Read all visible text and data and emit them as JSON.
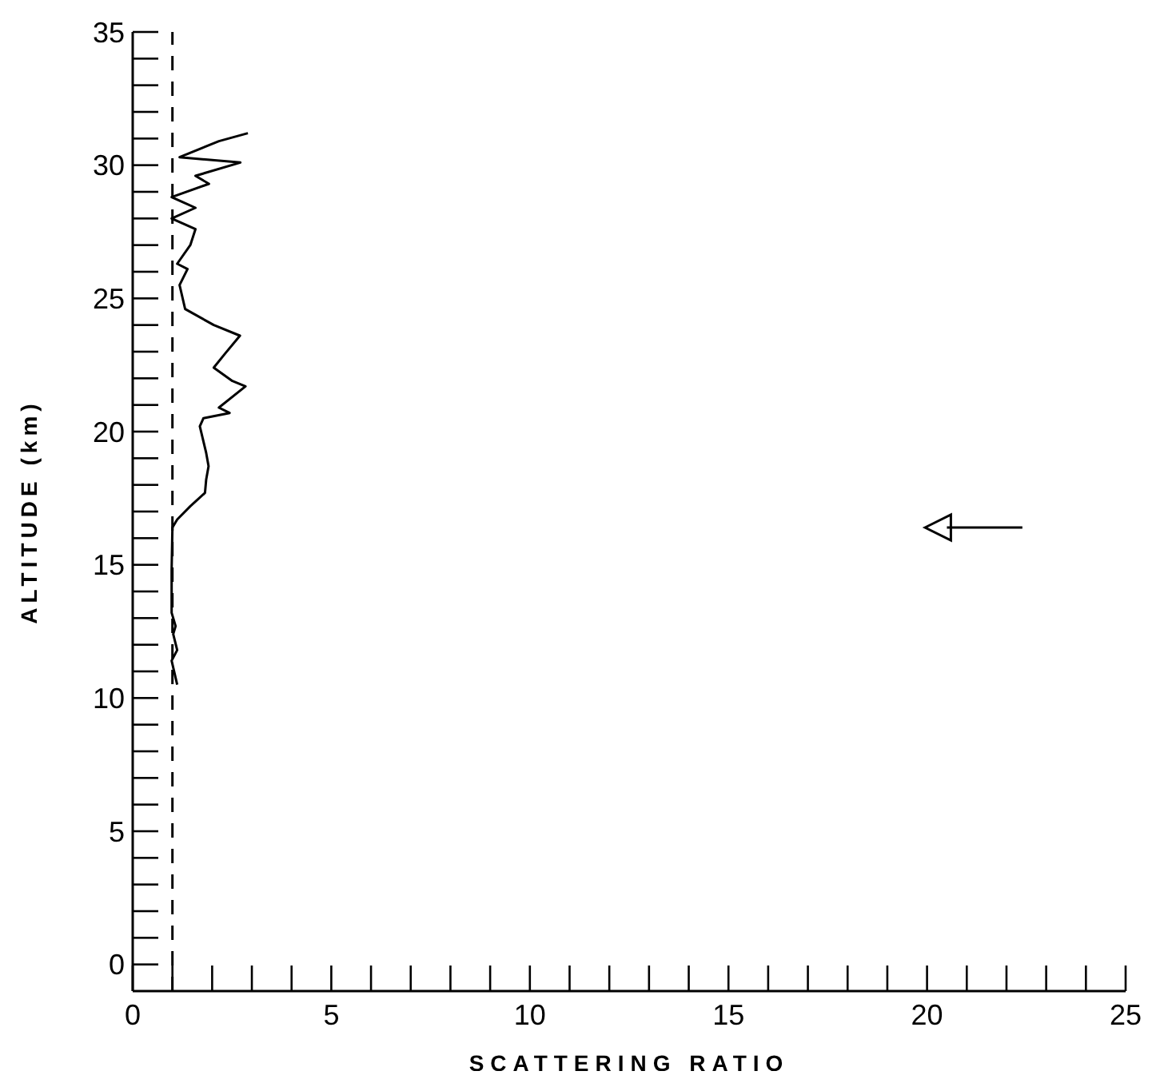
{
  "chart_data": {
    "type": "line",
    "xlabel": "SCATTERING RATIO",
    "ylabel": "ALTITUDE (km)",
    "xlim": [
      0,
      25
    ],
    "xticks": [
      0,
      {
        "value": 1,
        "label": null
      },
      {
        "value": 2,
        "label": null
      },
      {
        "value": 3,
        "label": null
      },
      {
        "value": 4,
        "label": null
      },
      5,
      {
        "value": 6,
        "label": null
      },
      {
        "value": 7,
        "label": null
      },
      {
        "value": 8,
        "label": null
      },
      {
        "value": 9,
        "label": null
      },
      10,
      {
        "value": 11,
        "label": null
      },
      {
        "value": 12,
        "label": null
      },
      {
        "value": 13,
        "label": null
      },
      {
        "value": 14,
        "label": null
      },
      15,
      {
        "value": 16,
        "label": null
      },
      {
        "value": 17,
        "label": null
      },
      {
        "value": 18,
        "label": null
      },
      {
        "value": 19,
        "label": null
      },
      20,
      {
        "value": 21,
        "label": null
      },
      {
        "value": 22,
        "label": null
      },
      {
        "value": 23,
        "label": null
      },
      {
        "value": 24,
        "label": null
      },
      25
    ],
    "ylim": [
      -1,
      35
    ],
    "yticks": [
      0,
      {
        "value": 1,
        "label": null
      },
      {
        "value": 2,
        "label": null
      },
      {
        "value": 3,
        "label": null
      },
      {
        "value": 4,
        "label": null
      },
      5,
      {
        "value": 6,
        "label": null
      },
      {
        "value": 7,
        "label": null
      },
      {
        "value": 8,
        "label": null
      },
      {
        "value": 9,
        "label": null
      },
      10,
      {
        "value": 11,
        "label": null
      },
      {
        "value": 12,
        "label": null
      },
      {
        "value": 13,
        "label": null
      },
      {
        "value": 14,
        "label": null
      },
      15,
      {
        "value": 16,
        "label": null
      },
      {
        "value": 17,
        "label": null
      },
      {
        "value": 18,
        "label": null
      },
      {
        "value": 19,
        "label": null
      },
      20,
      {
        "value": 21,
        "label": null
      },
      {
        "value": 22,
        "label": null
      },
      {
        "value": 23,
        "label": null
      },
      {
        "value": 24,
        "label": null
      },
      25,
      {
        "value": 26,
        "label": null
      },
      {
        "value": 27,
        "label": null
      },
      {
        "value": 28,
        "label": null
      },
      {
        "value": 29,
        "label": null
      },
      30,
      {
        "value": 31,
        "label": null
      },
      {
        "value": 32,
        "label": null
      },
      {
        "value": 33,
        "label": null
      },
      {
        "value": 34,
        "label": null
      },
      35
    ],
    "grid": false,
    "legend": false,
    "marker": "none",
    "line_style": "solid",
    "ref_lines": [
      {
        "axis": "x",
        "value": 1,
        "label": null,
        "color": "#000000",
        "line_style": "dashed"
      }
    ],
    "series": [
      {
        "color": "#000000",
        "x": [
          1.12,
          0.98,
          1.12,
          1.02,
          1.08,
          0.98,
          0.98,
          1.0,
          1.12,
          1.45,
          1.82,
          1.85,
          1.91,
          1.85,
          1.69,
          1.78,
          2.44,
          2.17,
          2.84,
          2.51,
          2.04,
          2.31,
          2.7,
          2.04,
          1.32,
          1.18,
          1.38,
          1.12,
          1.45,
          1.58,
          0.98,
          1.58,
          0.98,
          1.92,
          1.58,
          2.71,
          1.18,
          2.17,
          2.9
        ],
        "values": [
          10.5,
          11.4,
          11.8,
          12.4,
          12.7,
          13.2,
          14.8,
          16.4,
          16.7,
          17.2,
          17.7,
          18.2,
          18.7,
          19.2,
          20.2,
          20.5,
          20.7,
          20.9,
          21.7,
          21.9,
          22.4,
          22.9,
          23.6,
          24.0,
          24.6,
          25.5,
          26.1,
          26.3,
          27.0,
          27.6,
          28.0,
          28.4,
          28.8,
          29.3,
          29.6,
          30.1,
          30.3,
          30.9,
          31.2
        ]
      }
    ]
  }
}
